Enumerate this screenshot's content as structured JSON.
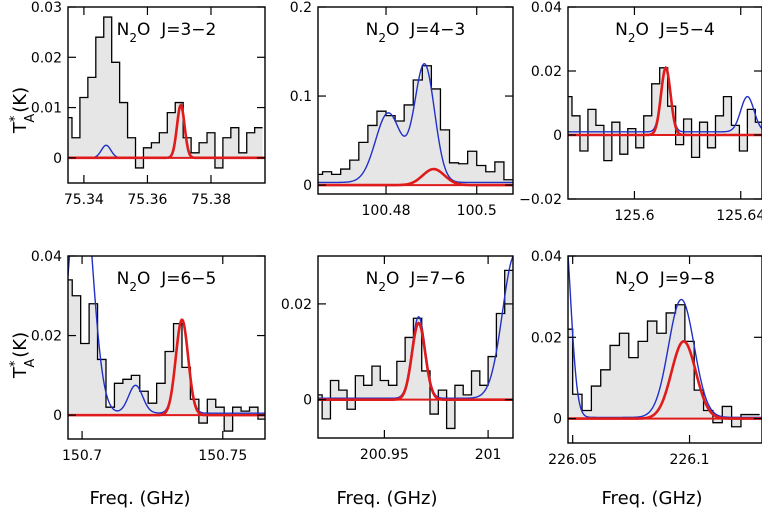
{
  "figure": {
    "ylabel_main": "T",
    "ylabel_sup": "*",
    "ylabel_sub": "A",
    "ylabel_unit": "(K)",
    "xlabel": "Freq. (GHz)"
  },
  "chart_data": [
    {
      "type": "line",
      "title": "N2O J=3−2",
      "title_parts": [
        "N",
        "2",
        "O  J=3−2"
      ],
      "xlim": [
        75.335,
        75.397
      ],
      "ylim": [
        -0.005,
        0.03
      ],
      "xticks": [
        75.34,
        75.36,
        75.38
      ],
      "xtick_labels": [
        "75.34",
        "75.36",
        "75.38"
      ],
      "yticks": [
        0,
        0.01,
        0.02,
        0.03
      ],
      "ytick_labels": [
        "0",
        "0.01",
        "0.02",
        "0.03"
      ],
      "series": [
        {
          "name": "observed",
          "style": "histogram",
          "color": "#000000",
          "x": [
            75.335,
            75.3375,
            75.34,
            75.3425,
            75.345,
            75.3475,
            75.35,
            75.3525,
            75.355,
            75.3575,
            75.36,
            75.3625,
            75.365,
            75.3675,
            75.37,
            75.3725,
            75.375,
            75.3775,
            75.38,
            75.3825,
            75.385,
            75.3875,
            75.39,
            75.3925,
            75.395
          ],
          "y": [
            0.008,
            0.004,
            0.012,
            0.016,
            0.024,
            0.028,
            0.019,
            0.011,
            0.004,
            -0.002,
            0.002,
            0.003,
            0.005,
            0.009,
            0.011,
            0.004,
            0.001,
            0.003,
            0.005,
            -0.002,
            0.004,
            0.006,
            0.001,
            0.005,
            0.006
          ]
        },
        {
          "name": "model-total",
          "style": "line",
          "color": "#2030c8",
          "peaks": [
            {
              "center": 75.347,
              "amp": 0.0025,
              "sigma": 0.0015
            },
            {
              "center": 75.3705,
              "amp": 0.0105,
              "sigma": 0.0012
            }
          ]
        },
        {
          "name": "model-N2O",
          "style": "line",
          "color": "#e01b1b",
          "peaks": [
            {
              "center": 75.3705,
              "amp": 0.0105,
              "sigma": 0.0012
            }
          ]
        }
      ]
    },
    {
      "type": "line",
      "title": "N2O J=4−3",
      "title_parts": [
        "N",
        "2",
        "O  J=4−3"
      ],
      "xlim": [
        100.465,
        100.508
      ],
      "ylim": [
        -0.01,
        0.2
      ],
      "xticks": [
        100.48,
        100.5
      ],
      "xtick_labels": [
        "100.48",
        "100.5"
      ],
      "yticks": [
        0,
        0.1,
        0.2
      ],
      "ytick_labels": [
        "0",
        "0.1",
        "0.2"
      ],
      "series": [
        {
          "name": "observed",
          "style": "histogram",
          "color": "#000000",
          "x": [
            100.465,
            100.467,
            100.469,
            100.471,
            100.473,
            100.475,
            100.477,
            100.479,
            100.481,
            100.483,
            100.485,
            100.487,
            100.489,
            100.491,
            100.493,
            100.495,
            100.497,
            100.499,
            100.501,
            100.503,
            100.505,
            100.507
          ],
          "y": [
            0.012,
            0.015,
            0.012,
            0.018,
            0.028,
            0.048,
            0.067,
            0.083,
            0.078,
            0.072,
            0.09,
            0.118,
            0.134,
            0.108,
            0.062,
            0.025,
            0.024,
            0.038,
            0.022,
            0.015,
            0.026,
            0.006
          ]
        },
        {
          "name": "model-total",
          "style": "line",
          "color": "#2030c8",
          "baseline": 0.003,
          "peaks": [
            {
              "center": 100.4805,
              "amp": 0.078,
              "sigma": 0.0028
            },
            {
              "center": 100.4885,
              "amp": 0.132,
              "sigma": 0.0022
            }
          ]
        },
        {
          "name": "model-N2O",
          "style": "line",
          "color": "#e01b1b",
          "peaks": [
            {
              "center": 100.4905,
              "amp": 0.018,
              "sigma": 0.0024
            }
          ]
        }
      ]
    },
    {
      "type": "line",
      "title": "N2O J=5−4",
      "title_parts": [
        "N",
        "2",
        "O  J=5−4"
      ],
      "xlim": [
        125.575,
        125.648
      ],
      "ylim": [
        -0.02,
        0.04
      ],
      "xticks": [
        125.6,
        125.64
      ],
      "xtick_labels": [
        "125.6",
        "125.64"
      ],
      "yticks": [
        -0.02,
        0,
        0.02,
        0.04
      ],
      "ytick_labels": [
        "−0.02",
        "0",
        "0.02",
        "0.04"
      ],
      "series": [
        {
          "name": "observed",
          "style": "histogram",
          "color": "#000000",
          "x": [
            125.575,
            125.578,
            125.581,
            125.584,
            125.587,
            125.59,
            125.593,
            125.596,
            125.599,
            125.602,
            125.605,
            125.608,
            125.611,
            125.614,
            125.617,
            125.62,
            125.623,
            125.626,
            125.629,
            125.632,
            125.635,
            125.638,
            125.641,
            125.644,
            125.647
          ],
          "y": [
            0.012,
            0.006,
            -0.005,
            0.008,
            0.003,
            -0.008,
            0.004,
            -0.006,
            0.002,
            -0.004,
            0.006,
            0.016,
            0.021,
            0.009,
            -0.003,
            0.005,
            -0.007,
            0.004,
            -0.004,
            0.006,
            0.012,
            0.003,
            -0.005,
            0.008,
            0.004
          ]
        },
        {
          "name": "model-total",
          "style": "line",
          "color": "#2030c8",
          "baseline": 0.001,
          "peaks": [
            {
              "center": 125.6118,
              "amp": 0.02,
              "sigma": 0.0018
            },
            {
              "center": 125.6425,
              "amp": 0.011,
              "sigma": 0.0025
            }
          ]
        },
        {
          "name": "model-N2O",
          "style": "line",
          "color": "#e01b1b",
          "peaks": [
            {
              "center": 125.6118,
              "amp": 0.021,
              "sigma": 0.0018
            }
          ]
        }
      ]
    },
    {
      "type": "line",
      "title": "N2O J=6−5",
      "title_parts": [
        "N",
        "2",
        "O  J=6−5"
      ],
      "xlim": [
        150.695,
        150.765
      ],
      "ylim": [
        -0.006,
        0.04
      ],
      "xticks": [
        150.7,
        150.75
      ],
      "xtick_labels": [
        "150.7",
        "150.75"
      ],
      "yticks": [
        0,
        0.02,
        0.04
      ],
      "ytick_labels": [
        "0",
        "0.02",
        "0.04"
      ],
      "series": [
        {
          "name": "observed",
          "style": "histogram",
          "color": "#000000",
          "x": [
            150.695,
            150.698,
            150.701,
            150.704,
            150.707,
            150.71,
            150.713,
            150.716,
            150.719,
            150.722,
            150.725,
            150.728,
            150.731,
            150.734,
            150.737,
            150.74,
            150.743,
            150.746,
            150.749,
            150.752,
            150.755,
            150.758,
            150.761,
            150.764
          ],
          "y": [
            0.034,
            0.03,
            0.018,
            0.028,
            0.014,
            0.002,
            0.008,
            0.009,
            0.01,
            0.006,
            0.003,
            0.008,
            0.016,
            0.023,
            0.012,
            0.004,
            -0.002,
            0.004,
            0.002,
            -0.004,
            0.002,
            0.001,
            0.002,
            -0.001
          ]
        },
        {
          "name": "model-total",
          "style": "line",
          "color": "#2030c8",
          "baseline": 0.0005,
          "peaks": [
            {
              "center": 150.6995,
              "amp": 0.065,
              "sigma": 0.004
            },
            {
              "center": 150.719,
              "amp": 0.007,
              "sigma": 0.0025
            },
            {
              "center": 150.7355,
              "amp": 0.0235,
              "sigma": 0.0022
            }
          ]
        },
        {
          "name": "model-N2O",
          "style": "line",
          "color": "#e01b1b",
          "peaks": [
            {
              "center": 150.7355,
              "amp": 0.024,
              "sigma": 0.0022
            }
          ]
        }
      ]
    },
    {
      "type": "line",
      "title": "N2O J=7−6",
      "title_parts": [
        "N",
        "2",
        "O  J=7−6"
      ],
      "xlim": [
        200.918,
        201.012
      ],
      "ylim": [
        -0.008,
        0.03
      ],
      "xticks": [
        200.95,
        201.0
      ],
      "xtick_labels": [
        "200.95",
        "201"
      ],
      "yticks": [
        0,
        0.02
      ],
      "ytick_labels": [
        "0",
        "0.02"
      ],
      "series": [
        {
          "name": "observed",
          "style": "histogram",
          "color": "#000000",
          "x": [
            200.918,
            200.922,
            200.926,
            200.93,
            200.934,
            200.938,
            200.942,
            200.946,
            200.95,
            200.954,
            200.958,
            200.962,
            200.966,
            200.97,
            200.974,
            200.978,
            200.982,
            200.986,
            200.99,
            200.994,
            200.998,
            201.002,
            201.006,
            201.01
          ],
          "y": [
            0.001,
            -0.004,
            0.004,
            0.002,
            -0.002,
            0.005,
            0.003,
            0.007,
            0.004,
            0.003,
            0.008,
            0.013,
            0.017,
            0.006,
            -0.003,
            0.002,
            -0.006,
            0.003,
            0.001,
            0.006,
            0.003,
            0.009,
            0.018,
            0.027
          ]
        },
        {
          "name": "model-total",
          "style": "line",
          "color": "#2030c8",
          "baseline": 0.0003,
          "peaks": [
            {
              "center": 200.9665,
              "amp": 0.017,
              "sigma": 0.0032
            },
            {
              "center": 201.013,
              "amp": 0.03,
              "sigma": 0.006
            }
          ]
        },
        {
          "name": "model-N2O",
          "style": "line",
          "color": "#e01b1b",
          "peaks": [
            {
              "center": 200.9665,
              "amp": 0.016,
              "sigma": 0.0032
            }
          ]
        }
      ]
    },
    {
      "type": "line",
      "title": "N2O J=9−8",
      "title_parts": [
        "N",
        "2",
        "O  J=9−8"
      ],
      "xlim": [
        226.048,
        226.131
      ],
      "ylim": [
        -0.006,
        0.04
      ],
      "xticks": [
        226.05,
        226.1
      ],
      "xtick_labels": [
        "226.05",
        "226.1"
      ],
      "yticks": [
        0,
        0.02,
        0.04
      ],
      "ytick_labels": [
        "0",
        "0.02",
        "0.04"
      ],
      "series": [
        {
          "name": "observed",
          "style": "histogram",
          "color": "#000000",
          "x": [
            226.048,
            226.052,
            226.056,
            226.06,
            226.064,
            226.068,
            226.072,
            226.076,
            226.08,
            226.084,
            226.088,
            226.092,
            226.096,
            226.1,
            226.104,
            226.108,
            226.112,
            226.116,
            226.12,
            226.124,
            226.128
          ],
          "y": [
            0.022,
            0.006,
            0.002,
            0.008,
            0.012,
            0.018,
            0.021,
            0.015,
            0.019,
            0.024,
            0.021,
            0.026,
            0.028,
            0.019,
            0.007,
            0.002,
            -0.001,
            0.003,
            -0.002,
            0.001,
            0.001
          ]
        },
        {
          "name": "model-total",
          "style": "line",
          "color": "#2030c8",
          "baseline": 0.0003,
          "peaks": [
            {
              "center": 226.046,
              "amp": 0.05,
              "sigma": 0.003
            },
            {
              "center": 226.0965,
              "amp": 0.029,
              "sigma": 0.0055
            }
          ]
        },
        {
          "name": "model-N2O",
          "style": "line",
          "color": "#e01b1b",
          "peaks": [
            {
              "center": 226.0975,
              "amp": 0.019,
              "sigma": 0.0052
            }
          ]
        }
      ]
    }
  ]
}
